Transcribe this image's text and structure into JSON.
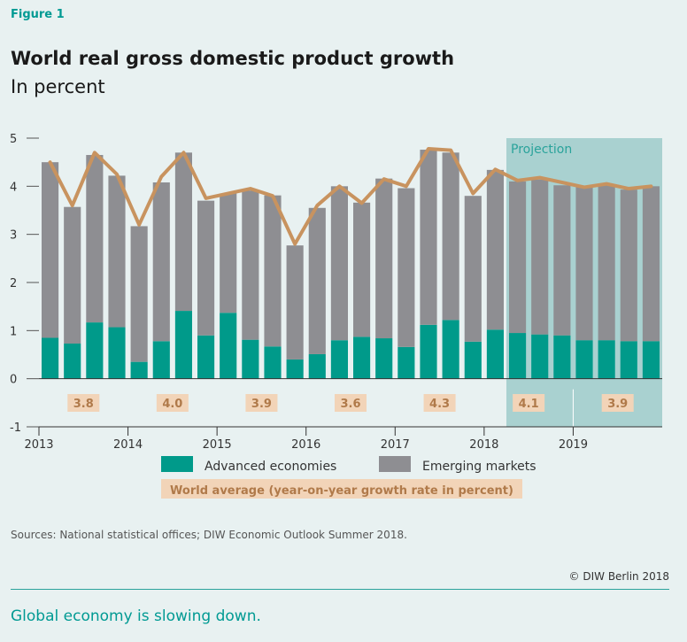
{
  "figure_label": "Figure 1",
  "title": "World real gross domestic product growth",
  "subtitle": "In percent",
  "sources": "Sources: National statistical offices; DIW Economic Outlook Summer 2018.",
  "copyright": "© DIW Berlin 2018",
  "footer": "Global economy is slowing down.",
  "colors": {
    "advanced": "#009a8a",
    "emerging": "#8e8e92",
    "world": "#c8935f",
    "projection_bg": "#a9d1d0",
    "avg_box": "#f2d4b8",
    "avg_text": "#b07a4a",
    "teal": "#2aa39b"
  },
  "chart_data": {
    "type": "bar",
    "stacked": true,
    "ylim": [
      -1,
      5
    ],
    "yticks": [
      "-1",
      "0",
      "1",
      "2",
      "3",
      "4",
      "5"
    ],
    "year_labels": [
      "2013",
      "2014",
      "2015",
      "2016",
      "2017",
      "2018",
      "2019"
    ],
    "projection_label": "Projection",
    "projection_start_index": 21,
    "series": [
      {
        "name": "Advanced economies",
        "type": "bar",
        "values": [
          0.85,
          0.73,
          1.17,
          1.07,
          0.35,
          0.78,
          1.41,
          0.9,
          1.37,
          0.81,
          0.67,
          0.4,
          0.51,
          0.8,
          0.87,
          0.84,
          0.66,
          1.12,
          1.22,
          0.77,
          1.02,
          0.95,
          0.92,
          0.9,
          0.8,
          0.8,
          0.78,
          0.78
        ]
      },
      {
        "name": "Emerging markets",
        "type": "bar",
        "values": [
          3.65,
          2.84,
          3.48,
          3.15,
          2.82,
          3.3,
          3.29,
          2.8,
          2.48,
          3.1,
          3.14,
          2.37,
          3.04,
          3.2,
          2.79,
          3.32,
          3.3,
          3.64,
          3.48,
          3.03,
          3.32,
          3.15,
          3.22,
          3.12,
          3.18,
          3.24,
          3.15,
          3.22
        ]
      },
      {
        "name": "World average (year-on-year growth rate in percent)",
        "type": "line",
        "values": [
          4.5,
          3.6,
          4.7,
          4.25,
          3.2,
          4.2,
          4.7,
          3.75,
          3.85,
          3.95,
          3.8,
          2.8,
          3.6,
          4.0,
          3.65,
          4.15,
          4.0,
          4.78,
          4.75,
          3.85,
          4.35,
          4.12,
          4.18,
          4.08,
          3.98,
          4.05,
          3.95,
          4.0
        ]
      }
    ],
    "annual_averages": [
      "3.8",
      "4.0",
      "3.9",
      "3.6",
      "4.3",
      "4.1",
      "3.9"
    ]
  }
}
